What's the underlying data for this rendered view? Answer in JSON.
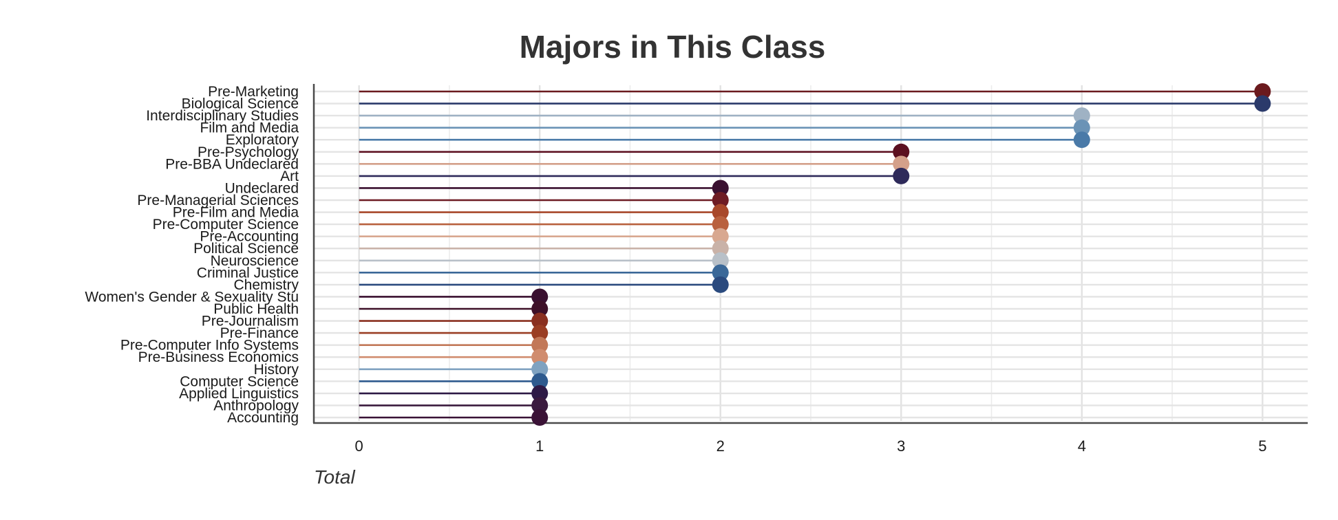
{
  "chart_data": {
    "type": "lollipop",
    "title": "Majors in This Class",
    "xlabel": "Total",
    "ylabel": "",
    "xlim": [
      -0.25,
      5.25
    ],
    "x_ticks": [
      0,
      1,
      2,
      3,
      4,
      5
    ],
    "grid": true,
    "legend": "none",
    "categories": [
      "Pre-Marketing",
      "Biological Science",
      "Interdisciplinary Studies",
      "Film and Media",
      "Exploratory",
      "Pre-Psychology",
      "Pre-BBA Undeclared",
      "Art",
      "Undeclared",
      "Pre-Managerial Sciences",
      "Pre-Film and Media",
      "Pre-Computer Science",
      "Pre-Accounting",
      "Political Science",
      "Neuroscience",
      "Criminal Justice",
      "Chemistry",
      "Women's Gender & Sexuality Stu",
      "Public Health",
      "Pre-Journalism",
      "Pre-Finance",
      "Pre-Computer Info Systems",
      "Pre-Business Economics",
      "History",
      "Computer Science",
      "Applied Linguistics",
      "Anthropology",
      "Accounting"
    ],
    "values": [
      5,
      5,
      4,
      4,
      4,
      3,
      3,
      3,
      2,
      2,
      2,
      2,
      2,
      2,
      2,
      2,
      2,
      1,
      1,
      1,
      1,
      1,
      1,
      1,
      1,
      1,
      1,
      1
    ],
    "colors": [
      "#6b1a1e",
      "#2b3a6b",
      "#9fb2c4",
      "#6b93b6",
      "#4a7aa8",
      "#5c1020",
      "#d4a08a",
      "#2e2a5a",
      "#3a1030",
      "#6e1c24",
      "#a8482a",
      "#b9613e",
      "#d8a890",
      "#c9b2a8",
      "#b8c0c8",
      "#3a6898",
      "#2a4a7e",
      "#3a1030",
      "#3e1028",
      "#8a3020",
      "#9a3e24",
      "#c27858",
      "#d08c6e",
      "#7fa2c0",
      "#2e5a8e",
      "#2e1a46",
      "#3a1a3e",
      "#3a1236"
    ]
  }
}
